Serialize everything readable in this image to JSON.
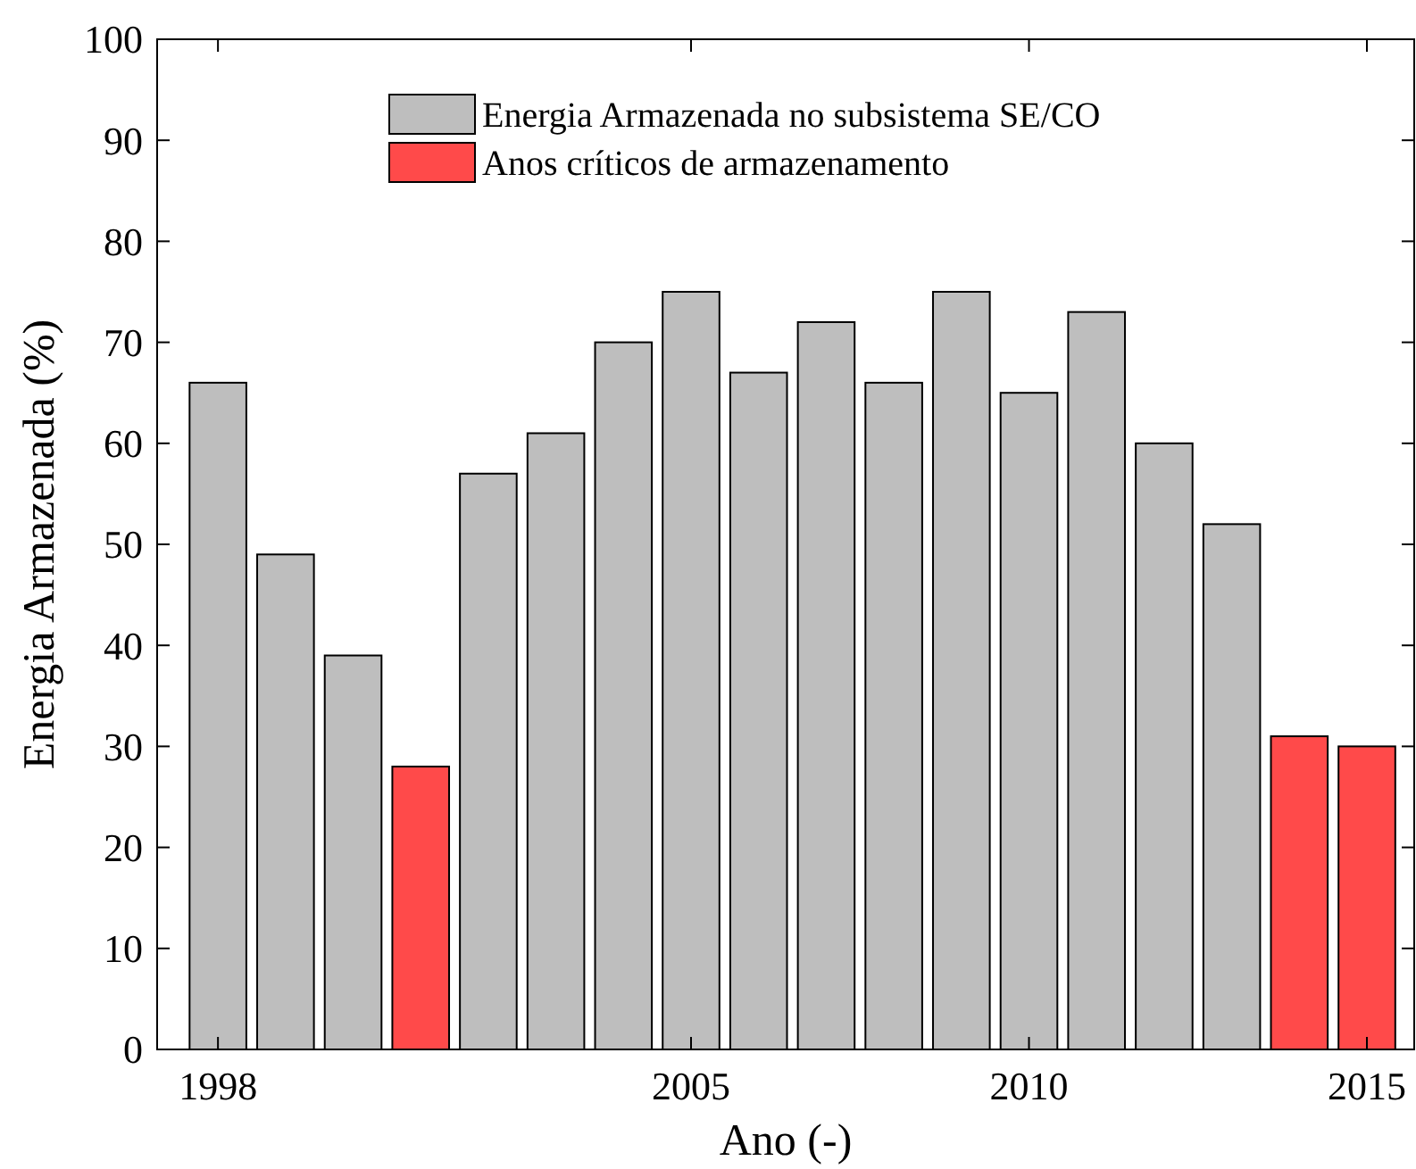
{
  "chart_data": {
    "type": "bar",
    "xlabel": "Ano (-)",
    "ylabel": "Energia Armazenada (%)",
    "x": [
      1998,
      1999,
      2000,
      2001,
      2002,
      2003,
      2004,
      2005,
      2006,
      2007,
      2008,
      2009,
      2010,
      2011,
      2012,
      2013,
      2014,
      2015
    ],
    "series": [
      {
        "name": "Energia Armazenada no subsistema SE/CO",
        "color": "#bebebe",
        "values": [
          66,
          49,
          39,
          null,
          57,
          61,
          70,
          75,
          67,
          72,
          66,
          75,
          65,
          73,
          60,
          52,
          null,
          null
        ]
      },
      {
        "name": "Anos críticos de armazenamento",
        "color": "#ff4a4a",
        "values": [
          null,
          null,
          null,
          28,
          null,
          null,
          null,
          null,
          null,
          null,
          null,
          null,
          null,
          null,
          null,
          null,
          31,
          30
        ]
      }
    ],
    "xlim": [
      1997.1,
      2015.7
    ],
    "xticks": [
      1998,
      2005,
      2010,
      2015
    ],
    "ylim": [
      0,
      100
    ],
    "yticks": [
      0,
      10,
      20,
      30,
      40,
      50,
      60,
      70,
      80,
      90,
      100
    ],
    "grid": false,
    "legend": "top"
  }
}
